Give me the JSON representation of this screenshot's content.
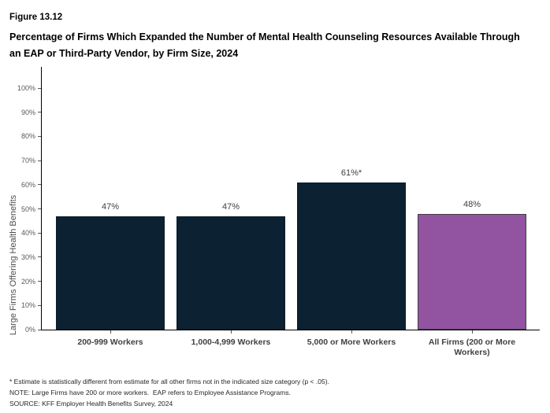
{
  "header": {
    "figure_number": "Figure 13.12",
    "title": "Percentage of Firms Which Expanded the Number of Mental Health Counseling Resources Available Through an EAP or Third-Party Vendor, by Firm Size, 2024"
  },
  "chart_data": {
    "type": "bar",
    "title": "Percentage of Firms Which Expanded the Number of Mental Health Counseling Resources Available Through an EAP or Third-Party Vendor, by Firm Size, 2024",
    "categories": [
      "200-999 Workers",
      "1,000-4,999 Workers",
      "5,000 or More Workers",
      "All Firms (200 or More Workers)"
    ],
    "values": [
      47,
      47,
      61,
      48
    ],
    "display_values": [
      "47%",
      "47%",
      "61%*",
      "48%"
    ],
    "bar_colors": [
      "#0C2233",
      "#0C2233",
      "#0C2233",
      "#9253A1"
    ],
    "bar_border_colors": [
      "#0A1B29",
      "#0A1B29",
      "#0A1B29",
      "#3F3F3F"
    ],
    "xlabel": "",
    "ylabel": "Large Firms Offering Health Benefits",
    "ylim": [
      0,
      100
    ],
    "ytick_interval": 10,
    "yticks": [
      "0%",
      "10%",
      "20%",
      "30%",
      "40%",
      "50%",
      "60%",
      "70%",
      "80%",
      "90%",
      "100%"
    ],
    "grid": false,
    "legend": false
  },
  "footnotes": {
    "line1": "* Estimate is statistically different from estimate for all other firms not in the indicated size category (p < .05).",
    "line2": "NOTE: Large Firms have 200 or more workers.  EAP refers to Employee Assistance Programs.",
    "line3": "SOURCE: KFF Employer Health Benefits Survey, 2024"
  }
}
